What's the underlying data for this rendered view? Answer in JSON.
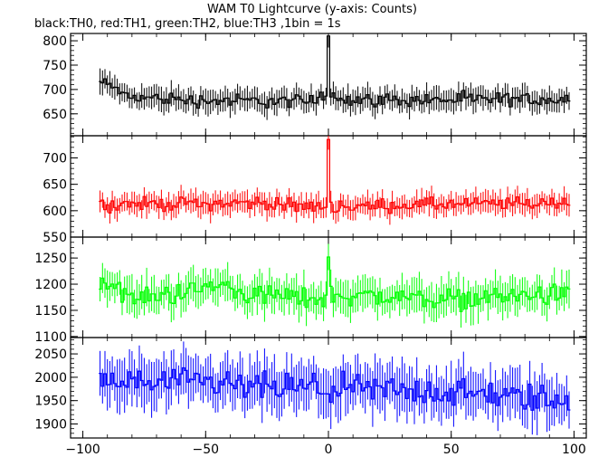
{
  "title": "WAM T0 Lightcurve (y-axis: Counts)",
  "subtitle": "black:TH0, red:TH1, green:TH2, blue:TH3 ,1bin = 1s",
  "chart_data": [
    {
      "type": "line",
      "name": "TH0",
      "color": "#000000",
      "x_range": [
        -93,
        98
      ],
      "xlim": [
        -105,
        105
      ],
      "ylim": [
        605,
        815
      ],
      "yticks": [
        650,
        700,
        750,
        800
      ],
      "baseline": 680,
      "noise": 18,
      "mode": "step-errorbar",
      "peak": {
        "x": 0,
        "y": 810
      },
      "segments": [
        {
          "x0": -93,
          "x1": -85,
          "y0": 715,
          "y1": 700
        },
        {
          "x0": -85,
          "x1": -60,
          "y0": 685,
          "y1": 680
        },
        {
          "x0": -60,
          "x1": -5,
          "y0": 678,
          "y1": 675
        },
        {
          "x0": -5,
          "x1": 5,
          "y0": 690,
          "y1": 690
        },
        {
          "x0": 5,
          "x1": 98,
          "y0": 678,
          "y1": 680
        }
      ]
    },
    {
      "type": "line",
      "name": "TH1",
      "color": "#ff0000",
      "x_range": [
        -93,
        98
      ],
      "xlim": [
        -105,
        105
      ],
      "ylim": [
        550,
        742
      ],
      "yticks": [
        550,
        600,
        650,
        700
      ],
      "baseline": 612,
      "noise": 16,
      "mode": "step-errorbar",
      "peak": {
        "x": 0,
        "y": 735
      },
      "segments": [
        {
          "x0": -93,
          "x1": -20,
          "y0": 612,
          "y1": 615
        },
        {
          "x0": -20,
          "x1": 20,
          "y0": 608,
          "y1": 608
        },
        {
          "x0": 20,
          "x1": 98,
          "y0": 610,
          "y1": 615
        }
      ]
    },
    {
      "type": "line",
      "name": "TH2",
      "color": "#00ff00",
      "x_range": [
        -93,
        98
      ],
      "xlim": [
        -105,
        105
      ],
      "ylim": [
        1098,
        1290
      ],
      "yticks": [
        1100,
        1150,
        1200,
        1250
      ],
      "baseline": 1180,
      "noise": 25,
      "mode": "step-errorbar",
      "peak": {
        "x": 0,
        "y": 1252
      },
      "segments": [
        {
          "x0": -93,
          "x1": -80,
          "y0": 1210,
          "y1": 1175
        },
        {
          "x0": -80,
          "x1": -40,
          "y0": 1170,
          "y1": 1200
        },
        {
          "x0": -40,
          "x1": 0,
          "y0": 1185,
          "y1": 1170
        },
        {
          "x0": 0,
          "x1": 60,
          "y0": 1180,
          "y1": 1170
        },
        {
          "x0": 60,
          "x1": 98,
          "y0": 1175,
          "y1": 1180
        }
      ]
    },
    {
      "type": "line",
      "name": "TH3",
      "color": "#0000ff",
      "x_range": [
        -93,
        98
      ],
      "xlim": [
        -105,
        105
      ],
      "ylim": [
        1870,
        2085
      ],
      "yticks": [
        1900,
        1950,
        2000,
        2050
      ],
      "baseline": 1975,
      "noise": 40,
      "mode": "step-errorbar",
      "peak": null,
      "segments": [
        {
          "x0": -93,
          "x1": -40,
          "y0": 1990,
          "y1": 1985
        },
        {
          "x0": -40,
          "x1": 40,
          "y0": 1980,
          "y1": 1970
        },
        {
          "x0": 40,
          "x1": 98,
          "y0": 1970,
          "y1": 1950
        }
      ]
    }
  ],
  "x_axis": {
    "ticks": [
      -100,
      -50,
      0,
      50,
      100
    ],
    "minor_step": 10
  }
}
